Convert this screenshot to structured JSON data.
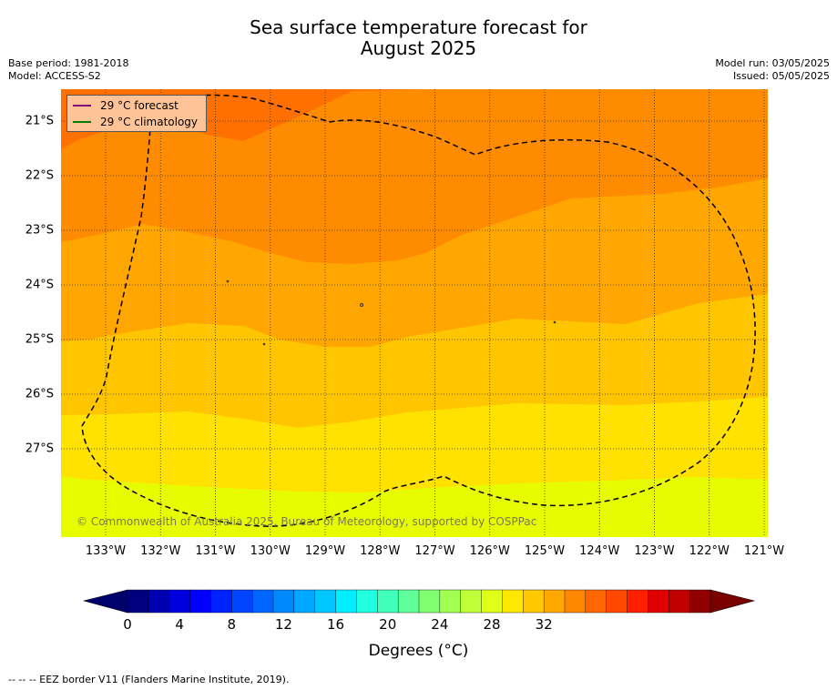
{
  "title_line1": "Sea surface temperature forecast for",
  "title_line2": "August 2025",
  "meta_left": {
    "base_period": "Base period: 1981-2018",
    "model": "Model: ACCESS-S2"
  },
  "meta_right": {
    "model_run": "Model run: 03/05/2025",
    "issued": "Issued: 05/05/2025"
  },
  "legend": {
    "forecast": {
      "label": "29 °C  forecast",
      "color": "#800080"
    },
    "climatology": {
      "label": "29 °C  climatology",
      "color": "#008000"
    }
  },
  "copyright": "© Commonwealth of Australia 2025, Bureau of Meteorology, supported by COSPPac",
  "x_ticks": [
    "133°W",
    "132°W",
    "131°W",
    "130°W",
    "129°W",
    "128°W",
    "127°W",
    "126°W",
    "125°W",
    "124°W",
    "123°W",
    "122°W",
    "121°W"
  ],
  "y_ticks": [
    "21°S",
    "22°S",
    "23°S",
    "24°S",
    "25°S",
    "26°S",
    "27°S"
  ],
  "colorbar": {
    "label": "Degrees ($^\\circ$C)",
    "label_text": "Degrees (°C)",
    "ticks": [
      "0",
      "4",
      "8",
      "12",
      "16",
      "20",
      "24",
      "28",
      "32"
    ],
    "min": 0,
    "max": 32,
    "step": 1.6,
    "colors": [
      "#000080",
      "#0000b0",
      "#0000dd",
      "#0000ff",
      "#0022ff",
      "#0044ff",
      "#0066ff",
      "#0088ff",
      "#00a8ff",
      "#00c8ff",
      "#00eeff",
      "#20ffe0",
      "#40ffbb",
      "#60ff99",
      "#80ff70",
      "#a0ff50",
      "#c0ff38",
      "#e0ff18",
      "#ffe800",
      "#ffc800",
      "#ffa800",
      "#ff8800",
      "#ff6800",
      "#ff4800",
      "#ff2000",
      "#e00000",
      "#c00000",
      "#900000"
    ],
    "under_color": "#00006a",
    "over_color": "#7a0000"
  },
  "footnote": "--  --  -- EEZ border V11 (Flanders Marine Institute, 2019).",
  "map_colors": {
    "band_30_31": "#ff7000",
    "band_28_29": "#ff8c00",
    "band_27_28": "#ffa600",
    "band_26_27": "#ffc600",
    "band_25_26": "#ffe200",
    "band_24_25": "#e8fc00"
  }
}
